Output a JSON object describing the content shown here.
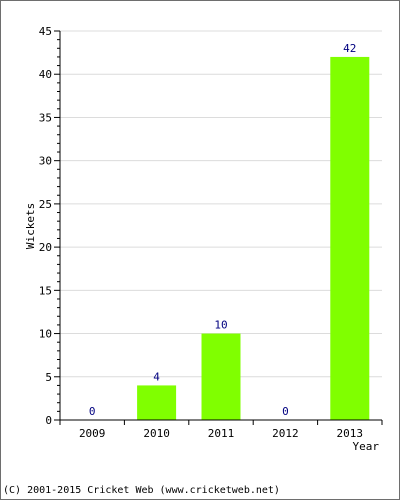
{
  "chart_data": {
    "type": "bar",
    "categories": [
      "2009",
      "2010",
      "2011",
      "2012",
      "2013"
    ],
    "values": [
      0,
      4,
      10,
      0,
      42
    ],
    "data_labels": [
      "0",
      "4",
      "10",
      "0",
      "42"
    ],
    "xlabel": "Year",
    "ylabel": "Wickets",
    "ylim": [
      0,
      45
    ],
    "yticks": [
      "0",
      "5",
      "10",
      "15",
      "20",
      "25",
      "30",
      "35",
      "40",
      "45"
    ],
    "grid": "horizontal",
    "colors": {
      "bar": "#80ff00",
      "label": "#000080",
      "grid": "#dcdcdc"
    }
  },
  "footer": "(C) 2001-2015 Cricket Web (www.cricketweb.net)"
}
